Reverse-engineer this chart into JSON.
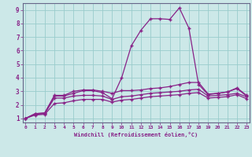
{
  "xlabel": "Windchill (Refroidissement éolien,°C)",
  "bg_color": "#cce8e8",
  "line_color": "#882288",
  "grid_color": "#99cccc",
  "x_values": [
    0,
    1,
    2,
    3,
    4,
    5,
    6,
    7,
    8,
    9,
    10,
    11,
    12,
    13,
    14,
    15,
    16,
    17,
    18,
    19,
    20,
    21,
    22,
    23
  ],
  "line_peak": [
    1.0,
    1.35,
    1.4,
    2.65,
    2.65,
    2.85,
    3.05,
    3.05,
    2.9,
    2.45,
    4.0,
    6.35,
    7.5,
    8.35,
    8.35,
    8.3,
    9.15,
    7.65,
    3.5,
    2.75,
    2.85,
    2.95,
    3.2,
    2.65
  ],
  "line_mid": [
    1.0,
    1.35,
    1.4,
    2.7,
    2.7,
    3.0,
    3.1,
    3.1,
    3.0,
    2.85,
    3.05,
    3.05,
    3.1,
    3.2,
    3.25,
    3.35,
    3.5,
    3.65,
    3.65,
    2.8,
    2.85,
    2.95,
    3.25,
    2.7
  ],
  "line_low": [
    1.0,
    1.3,
    1.35,
    2.5,
    2.5,
    2.65,
    2.7,
    2.7,
    2.65,
    2.4,
    2.6,
    2.65,
    2.75,
    2.85,
    2.9,
    2.95,
    3.0,
    3.1,
    3.15,
    2.65,
    2.7,
    2.75,
    2.85,
    2.6
  ],
  "line_bottom": [
    1.0,
    1.25,
    1.3,
    2.1,
    2.15,
    2.3,
    2.4,
    2.4,
    2.4,
    2.2,
    2.35,
    2.4,
    2.5,
    2.6,
    2.65,
    2.7,
    2.75,
    2.85,
    2.9,
    2.5,
    2.55,
    2.6,
    2.75,
    2.45
  ],
  "ylim": [
    0.7,
    9.5
  ],
  "xlim": [
    -0.3,
    23.3
  ],
  "yticks": [
    1,
    2,
    3,
    4,
    5,
    6,
    7,
    8,
    9
  ]
}
